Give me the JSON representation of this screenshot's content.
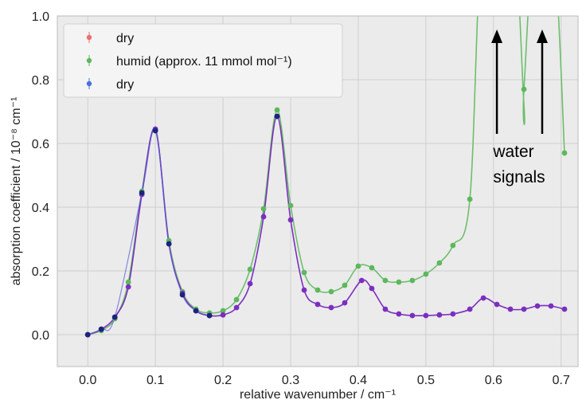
{
  "chart_data": {
    "type": "line",
    "xlabel": "relative wavenumber / cm⁻¹",
    "ylabel": "absorption coefficient / 10⁻⁸ cm⁻¹",
    "xlim": [
      -0.045,
      0.725
    ],
    "ylim": [
      -0.1,
      1.0
    ],
    "xticks": [
      0.0,
      0.1,
      0.2,
      0.3,
      0.4,
      0.5,
      0.6,
      0.7
    ],
    "xtick_labels": [
      "0.0",
      "0.1",
      "0.2",
      "0.3",
      "0.4",
      "0.5",
      "0.6",
      "0.7"
    ],
    "yticks": [
      0.0,
      0.2,
      0.4,
      0.6,
      0.8,
      1.0
    ],
    "ytick_labels": [
      "0.0",
      "0.2",
      "0.4",
      "0.6",
      "0.8",
      "1.0"
    ],
    "grid": true,
    "legend_position": "top-left",
    "legend": [
      {
        "label": "dry",
        "color": "#e8706e"
      },
      {
        "label": "humid (approx. 11 mmol mol⁻¹)",
        "color": "#5cb85c"
      },
      {
        "label": "dry",
        "color": "#4a6fe0"
      }
    ],
    "series": [
      {
        "color": "#5cb85c",
        "points": [
          [
            0.0,
            0.0
          ],
          [
            0.02,
            0.013
          ],
          [
            0.04,
            0.05
          ],
          [
            0.06,
            0.165
          ],
          [
            0.08,
            0.45
          ],
          [
            0.1,
            0.64
          ],
          [
            0.12,
            0.295
          ],
          [
            0.14,
            0.135
          ],
          [
            0.16,
            0.08
          ],
          [
            0.18,
            0.068
          ],
          [
            0.2,
            0.075
          ],
          [
            0.22,
            0.11
          ],
          [
            0.24,
            0.205
          ],
          [
            0.26,
            0.395
          ],
          [
            0.28,
            0.705
          ],
          [
            0.3,
            0.405
          ],
          [
            0.32,
            0.195
          ],
          [
            0.34,
            0.14
          ],
          [
            0.36,
            0.135
          ],
          [
            0.38,
            0.155
          ],
          [
            0.4,
            0.215
          ],
          [
            0.42,
            0.21
          ],
          [
            0.44,
            0.17
          ],
          [
            0.46,
            0.165
          ],
          [
            0.48,
            0.17
          ],
          [
            0.5,
            0.19
          ],
          [
            0.52,
            0.225
          ],
          [
            0.54,
            0.28
          ],
          [
            0.565,
            0.425
          ],
          [
            0.645,
            0.77
          ],
          [
            0.705,
            0.57
          ]
        ]
      },
      {
        "color": "#7b2fbe",
        "points": [
          [
            0.0,
            0.0
          ],
          [
            0.02,
            0.017
          ],
          [
            0.04,
            0.055
          ],
          [
            0.06,
            0.15
          ],
          [
            0.08,
            0.44
          ],
          [
            0.1,
            0.645
          ],
          [
            0.12,
            0.285
          ],
          [
            0.14,
            0.13
          ],
          [
            0.16,
            0.075
          ],
          [
            0.18,
            0.06
          ],
          [
            0.2,
            0.062
          ],
          [
            0.22,
            0.085
          ],
          [
            0.24,
            0.16
          ],
          [
            0.26,
            0.37
          ],
          [
            0.28,
            0.685
          ],
          [
            0.3,
            0.36
          ],
          [
            0.32,
            0.14
          ],
          [
            0.34,
            0.095
          ],
          [
            0.36,
            0.085
          ],
          [
            0.38,
            0.1
          ],
          [
            0.405,
            0.17
          ],
          [
            0.42,
            0.145
          ],
          [
            0.44,
            0.08
          ],
          [
            0.46,
            0.065
          ],
          [
            0.48,
            0.06
          ],
          [
            0.5,
            0.06
          ],
          [
            0.52,
            0.062
          ],
          [
            0.54,
            0.065
          ],
          [
            0.565,
            0.08
          ],
          [
            0.585,
            0.115
          ],
          [
            0.605,
            0.095
          ],
          [
            0.625,
            0.08
          ],
          [
            0.645,
            0.08
          ],
          [
            0.665,
            0.09
          ],
          [
            0.685,
            0.09
          ],
          [
            0.705,
            0.08
          ]
        ]
      },
      {
        "color": "#1a237e",
        "points": [
          [
            0.0,
            0.0
          ],
          [
            0.02,
            0.017
          ],
          [
            0.04,
            0.055
          ],
          [
            0.08,
            0.445
          ],
          [
            0.1,
            0.64
          ],
          [
            0.12,
            0.285
          ],
          [
            0.14,
            0.125
          ],
          [
            0.16,
            0.075
          ],
          [
            0.18,
            0.06
          ],
          [
            0.28,
            0.685
          ]
        ]
      }
    ],
    "annotations": {
      "text_lines": [
        "water",
        "signals"
      ],
      "arrow_targets_x": [
        0.605,
        0.672
      ]
    }
  }
}
